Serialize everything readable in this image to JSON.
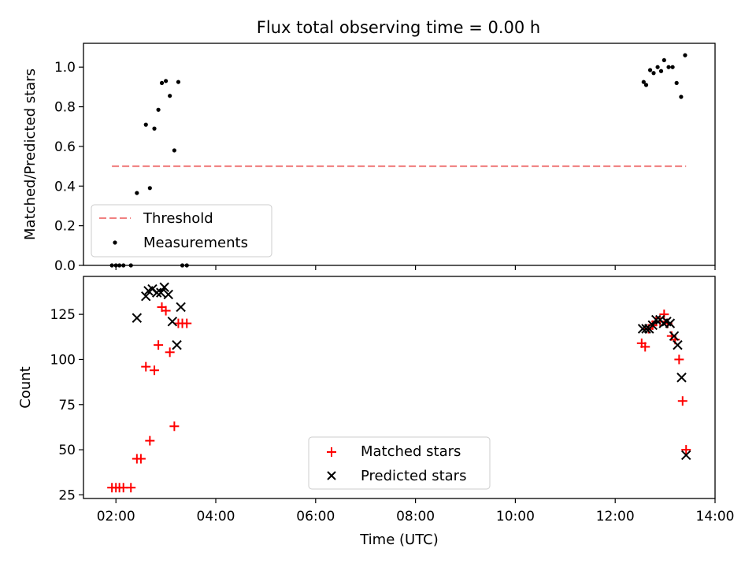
{
  "title": "Flux total observing time = 0.00 h",
  "chart_data": [
    {
      "type": "scatter",
      "title": "Flux total observing time = 0.00 h",
      "xlabel": "",
      "ylabel": "Matched/Predicted stars",
      "x_unit": "hours (UTC)",
      "xlim": [
        1.35,
        14.0
      ],
      "ylim": [
        0.0,
        1.12
      ],
      "yticks": [
        0.0,
        0.2,
        0.4,
        0.6,
        0.8,
        1.0
      ],
      "ytick_labels": [
        "0.0",
        "0.2",
        "0.4",
        "0.6",
        "0.8",
        "1.0"
      ],
      "legend_position": "lower-left",
      "threshold": {
        "name": "Threshold",
        "value": 0.5,
        "x_range": [
          1.92,
          13.42
        ],
        "color": "#f08080"
      },
      "series": [
        {
          "name": "Measurements",
          "color": "#000000",
          "x": [
            1.92,
            2.0,
            2.07,
            2.15,
            2.3,
            2.42,
            2.6,
            2.68,
            2.77,
            2.85,
            2.92,
            3.0,
            3.08,
            3.17,
            3.25,
            3.33,
            3.42,
            12.57,
            12.62,
            12.7,
            12.77,
            12.85,
            12.92,
            12.98,
            13.07,
            13.15,
            13.23,
            13.32,
            13.4
          ],
          "y": [
            0.0,
            0.0,
            0.0,
            0.0,
            0.0,
            0.365,
            0.71,
            0.39,
            0.69,
            0.785,
            0.92,
            0.93,
            0.855,
            0.58,
            0.925,
            0.0,
            0.0,
            0.925,
            0.91,
            0.985,
            0.97,
            1.0,
            0.98,
            1.035,
            1.0,
            1.0,
            0.92,
            0.85,
            1.06
          ]
        }
      ]
    },
    {
      "type": "scatter",
      "title": "",
      "xlabel": "Time (UTC)",
      "ylabel": "Count",
      "x_unit": "hours (UTC)",
      "xlim": [
        1.35,
        14.0
      ],
      "ylim": [
        23,
        146
      ],
      "yticks": [
        25,
        50,
        75,
        100,
        125
      ],
      "ytick_labels": [
        "25",
        "50",
        "75",
        "100",
        "125"
      ],
      "xticks": [
        2,
        4,
        6,
        8,
        10,
        12,
        14
      ],
      "xtick_labels": [
        "02:00",
        "04:00",
        "06:00",
        "08:00",
        "10:00",
        "12:00",
        "14:00"
      ],
      "legend_position": "lower-center",
      "series": [
        {
          "name": "Matched stars",
          "marker": "+",
          "color": "#ff0000",
          "x": [
            1.92,
            2.0,
            2.07,
            2.15,
            2.3,
            2.42,
            2.5,
            2.6,
            2.68,
            2.77,
            2.85,
            2.92,
            3.0,
            3.08,
            3.17,
            3.25,
            3.33,
            3.42,
            12.53,
            12.6,
            12.67,
            12.75,
            12.82,
            12.9,
            12.98,
            13.05,
            13.13,
            13.2,
            13.28,
            13.35,
            13.42
          ],
          "y": [
            29,
            29,
            29,
            29,
            29,
            45,
            45,
            96,
            55,
            94,
            108,
            129,
            127,
            104,
            63,
            120,
            120,
            120,
            109,
            107,
            117,
            119,
            121,
            121,
            125,
            120,
            113,
            111,
            100,
            77,
            50
          ]
        },
        {
          "name": "Predicted stars",
          "marker": "x",
          "color": "#000000",
          "x": [
            2.42,
            2.6,
            2.65,
            2.73,
            2.82,
            2.9,
            2.97,
            3.05,
            3.13,
            3.22,
            3.3,
            12.55,
            12.62,
            12.68,
            12.75,
            12.82,
            12.9,
            12.97,
            13.03,
            13.1,
            13.18,
            13.25,
            13.33,
            13.42
          ],
          "y": [
            123,
            135,
            138,
            139,
            137,
            137,
            140,
            136,
            121,
            108,
            129,
            117,
            117,
            117,
            119,
            122,
            122,
            120,
            121,
            120,
            113,
            108,
            90,
            47
          ]
        }
      ]
    }
  ]
}
